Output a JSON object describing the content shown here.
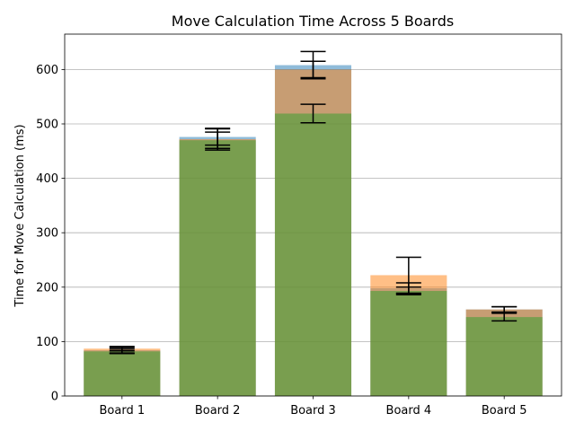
{
  "chart_data": {
    "type": "bar",
    "title": "Move Calculation Time Across 5 Boards",
    "xlabel": "",
    "ylabel": "Time for Move Calculation (ms)",
    "categories": [
      "Board 1",
      "Board 2",
      "Board 3",
      "Board 4",
      "Board 5"
    ],
    "ylim": [
      0,
      665
    ],
    "yticks": [
      0,
      100,
      200,
      300,
      400,
      500,
      600
    ],
    "grid": "y",
    "legend": "none",
    "overlay": true,
    "series": [
      {
        "color": "#1f77b4",
        "values": [
          84,
          476,
          608,
          198,
          159
        ],
        "errors": [
          5,
          15,
          25,
          10,
          5
        ]
      },
      {
        "color": "#ff7f0e",
        "values": [
          87,
          472,
          600,
          222,
          159
        ],
        "errors": [
          4,
          20,
          15,
          33,
          5
        ]
      },
      {
        "color": "#2ca02c",
        "values": [
          82,
          470,
          519,
          193,
          145
        ],
        "errors": [
          4,
          15,
          17,
          7,
          7
        ]
      }
    ]
  }
}
